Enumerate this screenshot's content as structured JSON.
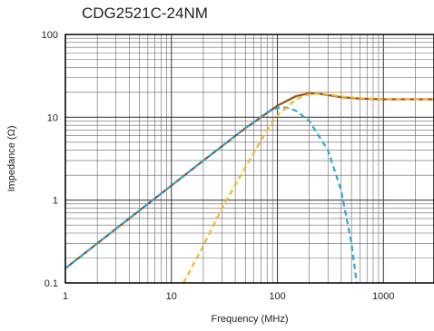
{
  "chart_data": {
    "type": "line",
    "title": "CDG2521C-24NM",
    "xlabel": "Frequency (MHz)",
    "ylabel": "Impedance (Ω)",
    "xscale": "log",
    "yscale": "log",
    "xlim": [
      1,
      3000
    ],
    "ylim": [
      0.1,
      100
    ],
    "x_ticks": [
      "1",
      "10",
      "100",
      "1000"
    ],
    "y_ticks": [
      "0.1",
      "1",
      "10",
      "100"
    ],
    "grid": true,
    "legend": "none",
    "series": [
      {
        "color": "#9a4e1e",
        "dash": "solid",
        "x": [
          1,
          2,
          5,
          10,
          20,
          50,
          100,
          150,
          200,
          250,
          300,
          400,
          600,
          1000,
          2000,
          3000
        ],
        "y": [
          0.15,
          0.3,
          0.75,
          1.5,
          3.0,
          7.4,
          13.8,
          18.0,
          19.5,
          19.2,
          18.5,
          17.5,
          16.8,
          16.5,
          16.5,
          16.5
        ]
      },
      {
        "color": "#2aa8d8",
        "dash": "dashed",
        "x": [
          1,
          2,
          5,
          10,
          20,
          50,
          80,
          100,
          120,
          150,
          200,
          300,
          400,
          500,
          560
        ],
        "y": [
          0.15,
          0.3,
          0.75,
          1.5,
          3.0,
          7.4,
          11.5,
          13.0,
          13.2,
          12.0,
          9.0,
          4.0,
          1.3,
          0.3,
          0.1
        ]
      },
      {
        "color": "#f2b824",
        "dash": "dashed",
        "x": [
          13,
          20,
          30,
          50,
          80,
          100,
          150,
          200,
          250,
          300,
          400,
          600,
          1000,
          2000,
          3000
        ],
        "y": [
          0.1,
          0.28,
          0.8,
          2.5,
          7.0,
          10.5,
          16.5,
          19.0,
          19.3,
          18.8,
          17.8,
          17.0,
          16.6,
          16.5,
          16.5
        ]
      }
    ]
  }
}
